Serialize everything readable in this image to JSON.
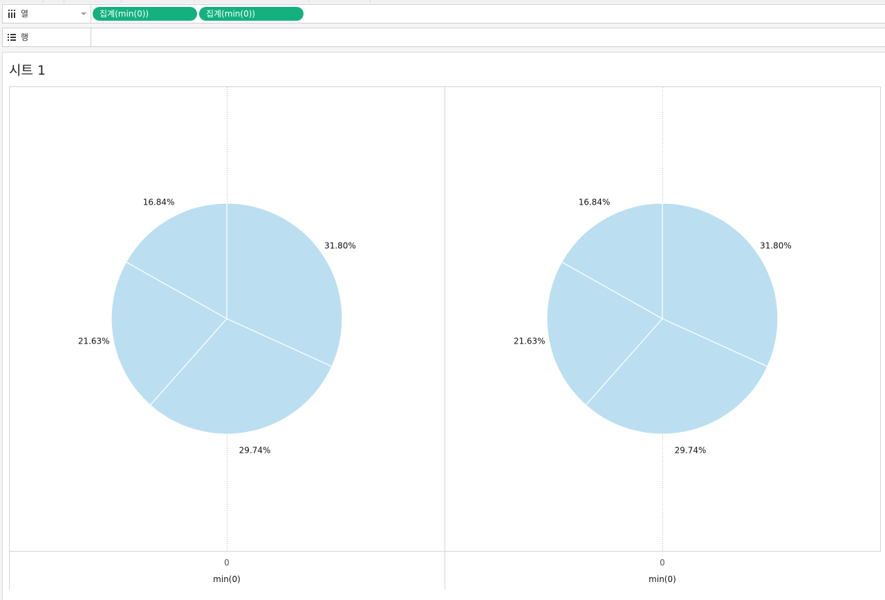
{
  "shelves": {
    "columns": {
      "label": "열",
      "icon": "columns-icon",
      "pills": [
        "집계(min(0))",
        "집계(min(0))"
      ]
    },
    "rows": {
      "label": "행",
      "icon": "rows-icon"
    }
  },
  "sheet": {
    "title": "시트 1"
  },
  "colors": {
    "pill": "#14b07e",
    "slice": "#bbdff1",
    "slice_border": "#ffffff"
  },
  "chart_data": [
    {
      "type": "pie",
      "slices": [
        {
          "label": "31.80%",
          "value": 31.8
        },
        {
          "label": "29.74%",
          "value": 29.74
        },
        {
          "label": "21.63%",
          "value": 21.63
        },
        {
          "label": "16.84%",
          "value": 16.84
        }
      ],
      "x_tick": "0",
      "xlabel": "min(0)"
    },
    {
      "type": "pie",
      "slices": [
        {
          "label": "31.80%",
          "value": 31.8
        },
        {
          "label": "29.74%",
          "value": 29.74
        },
        {
          "label": "21.63%",
          "value": 21.63
        },
        {
          "label": "16.84%",
          "value": 16.84
        }
      ],
      "x_tick": "0",
      "xlabel": "min(0)"
    }
  ]
}
